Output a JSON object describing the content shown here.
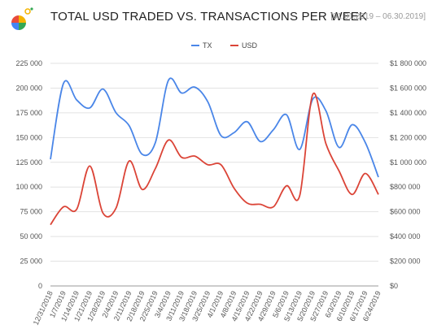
{
  "header": {
    "title": "TOTAL USD TRADED VS. TRANSACTIONS PER WEEK",
    "date_range": "[01.01.2019 – 06.30.2019]"
  },
  "colors": {
    "tx": "#4a86e8",
    "usd": "#db4437",
    "grid": "#e2e2e2",
    "axis": "#555555"
  },
  "chart_data": {
    "type": "line",
    "categories": [
      "12/31/2018",
      "1/7/2019",
      "1/14/2019",
      "1/21/2019",
      "1/28/2019",
      "2/4/2019",
      "2/11/2019",
      "2/18/2019",
      "2/25/2019",
      "3/4/2019",
      "3/11/2019",
      "3/18/2019",
      "3/25/2019",
      "4/1/2019",
      "4/8/2019",
      "4/15/2019",
      "4/22/2019",
      "4/29/2019",
      "5/6/2019",
      "5/13/2019",
      "5/20/2019",
      "5/27/2019",
      "6/3/2019",
      "6/10/2019",
      "6/17/2019",
      "6/24/2019"
    ],
    "series": [
      {
        "name": "TX",
        "axis": "left",
        "values": [
          128000,
          205000,
          188000,
          180000,
          199000,
          175000,
          162000,
          133000,
          145000,
          208000,
          195000,
          201000,
          186000,
          152000,
          155000,
          166000,
          146000,
          158000,
          173000,
          138000,
          189000,
          177000,
          140000,
          163000,
          145000,
          110000
        ]
      },
      {
        "name": "USD",
        "axis": "right",
        "values": [
          495000,
          640000,
          620000,
          970000,
          590000,
          630000,
          1010000,
          780000,
          950000,
          1180000,
          1040000,
          1050000,
          980000,
          980000,
          790000,
          670000,
          660000,
          640000,
          810000,
          730000,
          1550000,
          1150000,
          930000,
          740000,
          910000,
          740000
        ]
      }
    ],
    "y_left": {
      "min": 0,
      "max": 225000,
      "ticks": [
        0,
        25000,
        50000,
        75000,
        100000,
        125000,
        150000,
        175000,
        200000,
        225000
      ],
      "tick_labels": [
        "0",
        "25 000",
        "50 000",
        "75 000",
        "100 000",
        "125 000",
        "150 000",
        "175 000",
        "200 000",
        "225 000"
      ]
    },
    "y_right": {
      "min": 0,
      "max": 1800000,
      "ticks": [
        0,
        200000,
        400000,
        600000,
        800000,
        1000000,
        1200000,
        1400000,
        1600000,
        1800000
      ],
      "tick_labels": [
        "$0",
        "$200 000",
        "$400 000",
        "$600 000",
        "$800 000",
        "$1 000 000",
        "$1 200 000",
        "$1 400 000",
        "$1 600 000",
        "$1 800 000"
      ]
    },
    "legend": {
      "placement": "top-center",
      "entries": [
        "TX",
        "USD"
      ]
    },
    "grid": true
  }
}
